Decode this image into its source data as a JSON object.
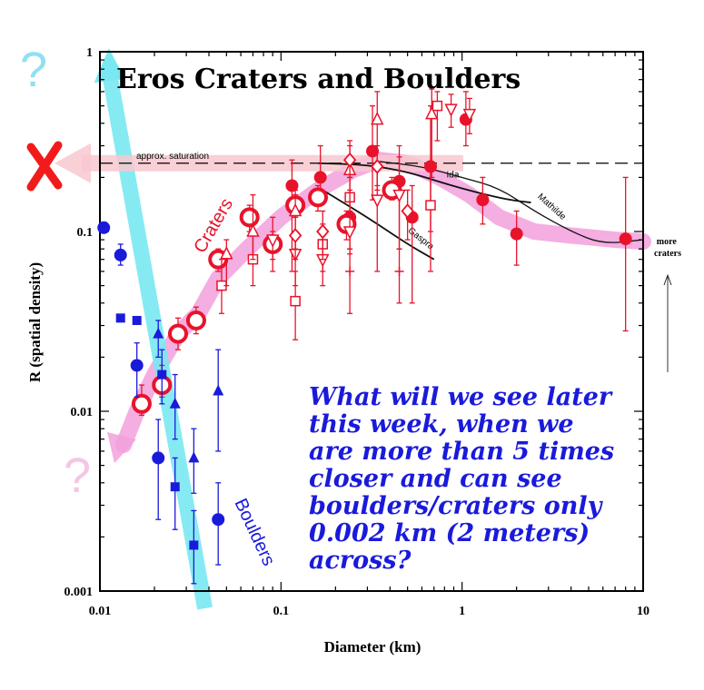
{
  "chart_data": {
    "type": "scatter",
    "title": "Eros Craters and Boulders",
    "xlabel": "Diameter (km)",
    "ylabel": "R (spatial density)",
    "xscale": "log",
    "yscale": "log",
    "xlim": [
      0.01,
      10
    ],
    "ylim": [
      0.001,
      1
    ],
    "x_ticks": [
      "0.01",
      "0.1",
      "1",
      "10"
    ],
    "y_ticks": [
      "0.001",
      "0.01",
      "0.1",
      "1"
    ],
    "saturation_level": 0.24,
    "saturation_label": "approx. saturation",
    "annotations": {
      "craters": "Craters",
      "boulders": "Boulders",
      "more_craters": "more craters",
      "question_mark": "?",
      "cross_mark": "X",
      "question_text": "What will we see later this week, when we are more than 5 times closer and can see boulders/craters only 0.002 km (2 meters) across?"
    },
    "question_lines": [
      "What will we see later",
      "this week, when we",
      "are more than 5 times",
      "closer and can see",
      "boulders/craters only",
      "0.002 km (2 meters)",
      "across?"
    ],
    "curves": [
      {
        "name": "Ida",
        "x": [
          0.16,
          0.3,
          0.5,
          0.8,
          1.2,
          1.8,
          2.4
        ],
        "y": [
          0.24,
          0.235,
          0.215,
          0.185,
          0.165,
          0.15,
          0.145
        ]
      },
      {
        "name": "Mathilde",
        "x": [
          0.35,
          0.6,
          1.0,
          1.6,
          2.5,
          4.0,
          6.0,
          10.0
        ],
        "y": [
          0.245,
          0.23,
          0.2,
          0.175,
          0.13,
          0.1,
          0.085,
          0.09
        ]
      },
      {
        "name": "Gaspra",
        "x": [
          0.17,
          0.3,
          0.5,
          0.7
        ],
        "y": [
          0.17,
          0.12,
          0.085,
          0.07
        ]
      }
    ],
    "series": [
      {
        "name": "",
        "group": "craters",
        "marker": "filled-circle",
        "color": "#e8132b",
        "points": [
          {
            "x": 0.115,
            "y": 0.18,
            "lo": 0.06,
            "hi": 0.25
          },
          {
            "x": 0.165,
            "y": 0.2,
            "lo": 0.16,
            "hi": 0.3
          },
          {
            "x": 0.24,
            "y": 0.12,
            "lo": 0.08,
            "hi": 0.17
          },
          {
            "x": 0.32,
            "y": 0.28,
            "lo": 0.15,
            "hi": 0.5
          },
          {
            "x": 0.45,
            "y": 0.19,
            "lo": 0.08,
            "hi": 0.3
          },
          {
            "x": 0.53,
            "y": 0.12,
            "lo": 0.04,
            "hi": 0.18
          },
          {
            "x": 0.67,
            "y": 0.23,
            "lo": 0.1,
            "hi": 0.5
          },
          {
            "x": 1.05,
            "y": 0.42,
            "lo": 0.3,
            "hi": 0.6
          },
          {
            "x": 1.3,
            "y": 0.15,
            "lo": 0.11,
            "hi": 0.2
          },
          {
            "x": 2.0,
            "y": 0.097,
            "lo": 0.065,
            "hi": 0.13
          },
          {
            "x": 8.0,
            "y": 0.091,
            "lo": 0.028,
            "hi": 0.2
          }
        ]
      },
      {
        "name": "",
        "group": "craters",
        "marker": "open-circle-thick",
        "color": "#e8132b",
        "points": [
          {
            "x": 0.017,
            "y": 0.011,
            "lo": 0.0095,
            "hi": 0.014
          },
          {
            "x": 0.022,
            "y": 0.014,
            "lo": 0.012,
            "hi": 0.018
          },
          {
            "x": 0.027,
            "y": 0.027,
            "lo": 0.022,
            "hi": 0.033
          },
          {
            "x": 0.034,
            "y": 0.032,
            "lo": 0.027,
            "hi": 0.038
          },
          {
            "x": 0.045,
            "y": 0.07,
            "lo": 0.06,
            "hi": 0.08
          },
          {
            "x": 0.067,
            "y": 0.12,
            "lo": 0.1,
            "hi": 0.14
          },
          {
            "x": 0.09,
            "y": 0.085,
            "lo": 0.07,
            "hi": 0.1
          },
          {
            "x": 0.12,
            "y": 0.14,
            "lo": 0.12,
            "hi": 0.16
          },
          {
            "x": 0.16,
            "y": 0.155,
            "lo": 0.13,
            "hi": 0.18
          },
          {
            "x": 0.23,
            "y": 0.11,
            "lo": 0.09,
            "hi": 0.13
          },
          {
            "x": 0.41,
            "y": 0.17,
            "lo": 0.15,
            "hi": 0.2
          }
        ]
      },
      {
        "name": "",
        "group": "craters",
        "marker": "open-square",
        "color": "#e8132b",
        "points": [
          {
            "x": 0.047,
            "y": 0.05,
            "lo": 0.035,
            "hi": 0.07
          },
          {
            "x": 0.07,
            "y": 0.07,
            "lo": 0.05,
            "hi": 0.095
          },
          {
            "x": 0.12,
            "y": 0.041,
            "lo": 0.025,
            "hi": 0.06
          },
          {
            "x": 0.17,
            "y": 0.085,
            "lo": 0.06,
            "hi": 0.11
          },
          {
            "x": 0.24,
            "y": 0.155,
            "lo": 0.12,
            "hi": 0.2
          },
          {
            "x": 0.67,
            "y": 0.14,
            "lo": 0.06,
            "hi": 0.22
          },
          {
            "x": 0.73,
            "y": 0.5,
            "lo": 0.32,
            "hi": 0.6
          }
        ]
      },
      {
        "name": "",
        "group": "craters",
        "marker": "open-triangle",
        "color": "#e8132b",
        "points": [
          {
            "x": 0.05,
            "y": 0.075,
            "lo": 0.05,
            "hi": 0.09
          },
          {
            "x": 0.07,
            "y": 0.1,
            "lo": 0.07,
            "hi": 0.16
          },
          {
            "x": 0.12,
            "y": 0.13,
            "lo": 0.08,
            "hi": 0.17
          },
          {
            "x": 0.24,
            "y": 0.22,
            "lo": 0.12,
            "hi": 0.3
          },
          {
            "x": 0.34,
            "y": 0.42,
            "lo": 0.18,
            "hi": 0.6
          },
          {
            "x": 0.68,
            "y": 0.45,
            "lo": 0.2,
            "hi": 0.62
          }
        ]
      },
      {
        "name": "",
        "group": "craters",
        "marker": "open-inverted-triangle",
        "color": "#e8132b",
        "points": [
          {
            "x": 0.09,
            "y": 0.09,
            "lo": 0.06,
            "hi": 0.12
          },
          {
            "x": 0.12,
            "y": 0.075,
            "lo": 0.05,
            "hi": 0.1
          },
          {
            "x": 0.17,
            "y": 0.07,
            "lo": 0.05,
            "hi": 0.09
          },
          {
            "x": 0.24,
            "y": 0.1,
            "lo": 0.075,
            "hi": 0.13
          },
          {
            "x": 0.34,
            "y": 0.15,
            "lo": 0.06,
            "hi": 0.22
          },
          {
            "x": 0.45,
            "y": 0.16,
            "lo": 0.08,
            "hi": 0.26
          },
          {
            "x": 0.87,
            "y": 0.48,
            "lo": 0.38,
            "hi": 0.58
          },
          {
            "x": 1.1,
            "y": 0.45,
            "lo": 0.35,
            "hi": 0.55
          }
        ]
      },
      {
        "name": "",
        "group": "craters",
        "marker": "open-diamond",
        "color": "#e8132b",
        "points": [
          {
            "x": 0.12,
            "y": 0.095,
            "lo": 0.07,
            "hi": 0.12
          },
          {
            "x": 0.17,
            "y": 0.1,
            "lo": 0.07,
            "hi": 0.13
          },
          {
            "x": 0.24,
            "y": 0.25,
            "lo": 0.2,
            "hi": 0.32
          },
          {
            "x": 0.34,
            "y": 0.23,
            "lo": 0.17,
            "hi": 0.3
          },
          {
            "x": 0.5,
            "y": 0.13,
            "lo": 0.09,
            "hi": 0.17
          }
        ]
      },
      {
        "name": "",
        "group": "craters",
        "marker": "small-cross",
        "color": "#e8132b",
        "points": [
          {
            "x": 0.24,
            "y": 0.06,
            "lo": 0.035,
            "hi": 0.08
          },
          {
            "x": 0.45,
            "y": 0.06,
            "lo": 0.04,
            "hi": 0.08
          }
        ]
      },
      {
        "name": "",
        "group": "boulders",
        "marker": "filled-circle",
        "color": "#1a1adb",
        "points": [
          {
            "x": 0.0105,
            "y": 0.105
          },
          {
            "x": 0.013,
            "y": 0.074,
            "lo": 0.065,
            "hi": 0.085
          },
          {
            "x": 0.016,
            "y": 0.018,
            "lo": 0.012,
            "hi": 0.024
          },
          {
            "x": 0.021,
            "y": 0.0055,
            "lo": 0.0025,
            "hi": 0.009
          },
          {
            "x": 0.045,
            "y": 0.0025,
            "lo": 0.0014,
            "hi": 0.004
          }
        ]
      },
      {
        "name": "",
        "group": "boulders",
        "marker": "filled-square",
        "color": "#1a1adb",
        "points": [
          {
            "x": 0.013,
            "y": 0.033
          },
          {
            "x": 0.016,
            "y": 0.032
          },
          {
            "x": 0.022,
            "y": 0.016,
            "lo": 0.011,
            "hi": 0.022
          },
          {
            "x": 0.026,
            "y": 0.0038,
            "lo": 0.0022,
            "hi": 0.0055
          },
          {
            "x": 0.033,
            "y": 0.0018,
            "lo": 0.0011,
            "hi": 0.0028
          }
        ]
      },
      {
        "name": "",
        "group": "boulders",
        "marker": "filled-triangle",
        "color": "#1a1adb",
        "points": [
          {
            "x": 0.021,
            "y": 0.027,
            "lo": 0.02,
            "hi": 0.032
          },
          {
            "x": 0.026,
            "y": 0.011,
            "lo": 0.007,
            "hi": 0.016
          },
          {
            "x": 0.033,
            "y": 0.0055,
            "lo": 0.0035,
            "hi": 0.008
          },
          {
            "x": 0.045,
            "y": 0.013,
            "lo": 0.006,
            "hi": 0.022
          }
        ]
      }
    ],
    "colors": {
      "craters": "#e8132b",
      "boulders": "#1a1adb",
      "cyan_band": "#7ae8f2",
      "pink_band": "#f2a0dc",
      "pink_arrow": "#f8c8cf"
    }
  }
}
